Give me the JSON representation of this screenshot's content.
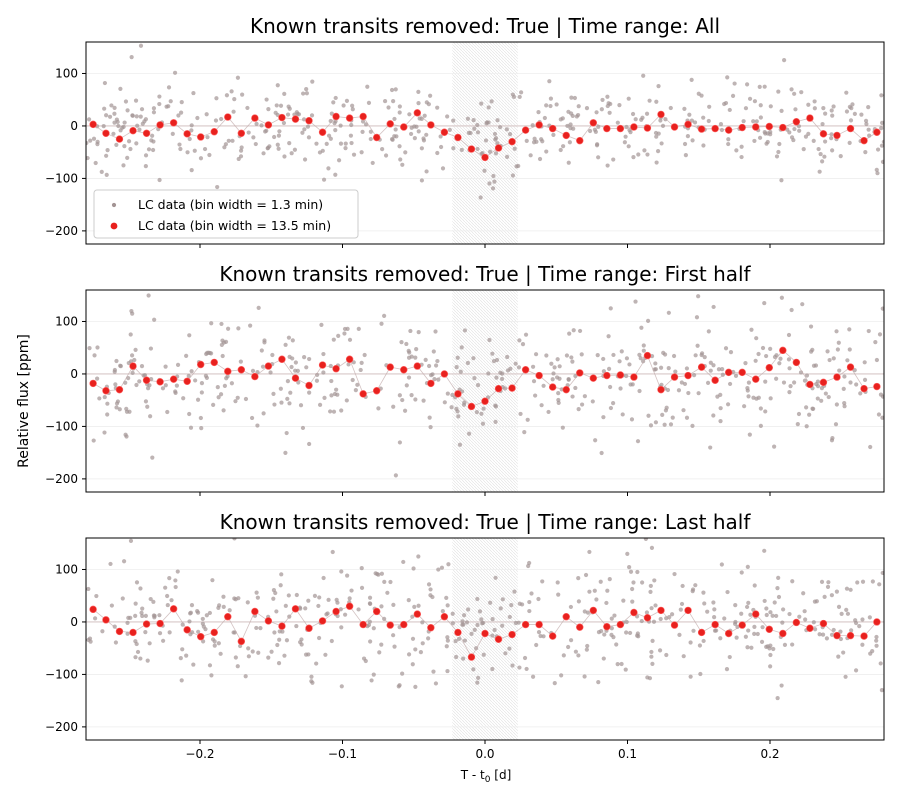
{
  "figure": {
    "ylabel": "Relative flux [ppm]",
    "xlabel_main": "T - t",
    "xlabel_sub": "0",
    "xlabel_tail": " [d]"
  },
  "legend": {
    "raw_label": "LC data (bin width = 1.3 min)",
    "binned_label": "LC data (bin width = 13.5 min)"
  },
  "chart_data": [
    {
      "type": "scatter",
      "title": "Known transits removed: True  |  Time range: All",
      "xlim": [
        -0.28,
        0.28
      ],
      "ylim": [
        -225,
        160
      ],
      "xticks": [
        -0.2,
        -0.1,
        0.0,
        0.1,
        0.2
      ],
      "xtick_labels": [
        "−0.2",
        "−0.1",
        "0.0",
        "0.1",
        "0.2"
      ],
      "yticks": [
        -200,
        -100,
        0,
        100
      ],
      "ytick_labels": [
        "−200",
        "−100",
        "0",
        "100"
      ],
      "transit_window": [
        -0.023,
        0.023
      ],
      "show_xtick_labels": false,
      "legend": "lower-left",
      "raw_series": {
        "name": "LC data (bin width = 1.3 min)",
        "color": "#a39494",
        "n_points": 520,
        "scatter_sigma": 45,
        "seed": 11
      },
      "binned_series": {
        "name": "LC data (bin width = 13.5 min)",
        "color": "#e8211e",
        "x": [
          -0.275,
          -0.266,
          -0.2565,
          -0.247,
          -0.2375,
          -0.228,
          -0.2185,
          -0.209,
          -0.1995,
          -0.19,
          -0.1805,
          -0.171,
          -0.1615,
          -0.152,
          -0.1425,
          -0.133,
          -0.1235,
          -0.114,
          -0.1045,
          -0.095,
          -0.0855,
          -0.076,
          -0.0665,
          -0.057,
          -0.0475,
          -0.038,
          -0.0285,
          -0.019,
          -0.0095,
          0.0,
          0.0095,
          0.019,
          0.0285,
          0.038,
          0.0475,
          0.057,
          0.0665,
          0.076,
          0.0855,
          0.095,
          0.1045,
          0.114,
          0.1235,
          0.133,
          0.1425,
          0.152,
          0.1615,
          0.171,
          0.1805,
          0.19,
          0.1995,
          0.209,
          0.2185,
          0.228,
          0.2375,
          0.247,
          0.2565,
          0.266,
          0.275
        ],
        "y": [
          3,
          -14,
          -25,
          -9,
          -14,
          2,
          6,
          -15,
          -21,
          -11,
          17,
          -14,
          15,
          2,
          16,
          13,
          10,
          -12,
          18,
          15,
          18,
          -22,
          4,
          -2,
          25,
          2,
          -12,
          -22,
          -44,
          -60,
          -42,
          -30,
          -8,
          2,
          -5,
          -18,
          -28,
          6,
          -5,
          -5,
          -2,
          -4,
          22,
          -2,
          3,
          -6,
          -5,
          -8,
          -3,
          -2,
          -1,
          -3,
          8,
          15,
          -15,
          -18,
          -5,
          -28,
          -12
        ]
      }
    },
    {
      "type": "scatter",
      "title": "Known transits removed: True  |  Time range: First half",
      "xlim": [
        -0.28,
        0.28
      ],
      "ylim": [
        -225,
        160
      ],
      "xticks": [
        -0.2,
        -0.1,
        0.0,
        0.1,
        0.2
      ],
      "xtick_labels": [
        "−0.2",
        "−0.1",
        "0.0",
        "0.1",
        "0.2"
      ],
      "yticks": [
        -200,
        -100,
        0,
        100
      ],
      "ytick_labels": [
        "−200",
        "−100",
        "0",
        "100"
      ],
      "transit_window": [
        -0.023,
        0.023
      ],
      "show_xtick_labels": false,
      "raw_series": {
        "name": "LC data (bin width = 1.3 min)",
        "color": "#a39494",
        "n_points": 520,
        "scatter_sigma": 55,
        "seed": 23
      },
      "binned_series": {
        "name": "LC data (bin width = 13.5 min)",
        "color": "#e8211e",
        "x": [
          -0.275,
          -0.266,
          -0.2565,
          -0.247,
          -0.2375,
          -0.228,
          -0.2185,
          -0.209,
          -0.1995,
          -0.19,
          -0.1805,
          -0.171,
          -0.1615,
          -0.152,
          -0.1425,
          -0.133,
          -0.1235,
          -0.114,
          -0.1045,
          -0.095,
          -0.0855,
          -0.076,
          -0.0665,
          -0.057,
          -0.0475,
          -0.038,
          -0.0285,
          -0.019,
          -0.0095,
          0.0,
          0.0095,
          0.019,
          0.0285,
          0.038,
          0.0475,
          0.057,
          0.0665,
          0.076,
          0.0855,
          0.095,
          0.1045,
          0.114,
          0.1235,
          0.133,
          0.1425,
          0.152,
          0.1615,
          0.171,
          0.1805,
          0.19,
          0.1995,
          0.209,
          0.2185,
          0.228,
          0.2375,
          0.247,
          0.2565,
          0.266,
          0.275
        ],
        "y": [
          -18,
          -32,
          -30,
          15,
          -12,
          -15,
          -10,
          -14,
          18,
          22,
          5,
          8,
          -5,
          15,
          28,
          -8,
          -22,
          17,
          10,
          28,
          -38,
          -32,
          13,
          8,
          15,
          -18,
          0,
          -38,
          -62,
          -52,
          -28,
          -27,
          8,
          -3,
          -25,
          -30,
          2,
          -8,
          -3,
          -2,
          -6,
          35,
          -30,
          -6,
          -3,
          13,
          -12,
          3,
          3,
          -10,
          12,
          45,
          22,
          -20,
          -16,
          -6,
          13,
          -28,
          -24
        ]
      }
    },
    {
      "type": "scatter",
      "title": "Known transits removed: True  |  Time range: Last half",
      "xlim": [
        -0.28,
        0.28
      ],
      "ylim": [
        -225,
        160
      ],
      "xticks": [
        -0.2,
        -0.1,
        0.0,
        0.1,
        0.2
      ],
      "xtick_labels": [
        "−0.2",
        "−0.1",
        "0.0",
        "0.1",
        "0.2"
      ],
      "yticks": [
        -200,
        -100,
        0,
        100
      ],
      "ytick_labels": [
        "−200",
        "−100",
        "0",
        "100"
      ],
      "transit_window": [
        -0.023,
        0.023
      ],
      "show_xtick_labels": true,
      "raw_series": {
        "name": "LC data (bin width = 1.3 min)",
        "color": "#a39494",
        "n_points": 520,
        "scatter_sigma": 55,
        "seed": 37
      },
      "binned_series": {
        "name": "LC data (bin width = 13.5 min)",
        "color": "#e8211e",
        "x": [
          -0.275,
          -0.266,
          -0.2565,
          -0.247,
          -0.2375,
          -0.228,
          -0.2185,
          -0.209,
          -0.1995,
          -0.19,
          -0.1805,
          -0.171,
          -0.1615,
          -0.152,
          -0.1425,
          -0.133,
          -0.1235,
          -0.114,
          -0.1045,
          -0.095,
          -0.0855,
          -0.076,
          -0.0665,
          -0.057,
          -0.0475,
          -0.038,
          -0.0285,
          -0.019,
          -0.0095,
          0.0,
          0.0095,
          0.019,
          0.0285,
          0.038,
          0.0475,
          0.057,
          0.0665,
          0.076,
          0.0855,
          0.095,
          0.1045,
          0.114,
          0.1235,
          0.133,
          0.1425,
          0.152,
          0.1615,
          0.171,
          0.1805,
          0.19,
          0.1995,
          0.209,
          0.2185,
          0.228,
          0.2375,
          0.247,
          0.2565,
          0.266,
          0.275
        ],
        "y": [
          24,
          4,
          -18,
          -20,
          -4,
          -3,
          25,
          -15,
          -28,
          -20,
          10,
          -37,
          20,
          2,
          -8,
          25,
          -12,
          2,
          20,
          30,
          -5,
          20,
          -6,
          -5,
          15,
          -11,
          10,
          -20,
          -67,
          -22,
          -33,
          -24,
          -5,
          -5,
          -27,
          10,
          -10,
          22,
          -9,
          -5,
          18,
          8,
          22,
          -6,
          22,
          -20,
          -5,
          -22,
          -6,
          15,
          -14,
          -22,
          -1,
          -12,
          -3,
          -26,
          -26,
          -27,
          0
        ]
      }
    }
  ]
}
